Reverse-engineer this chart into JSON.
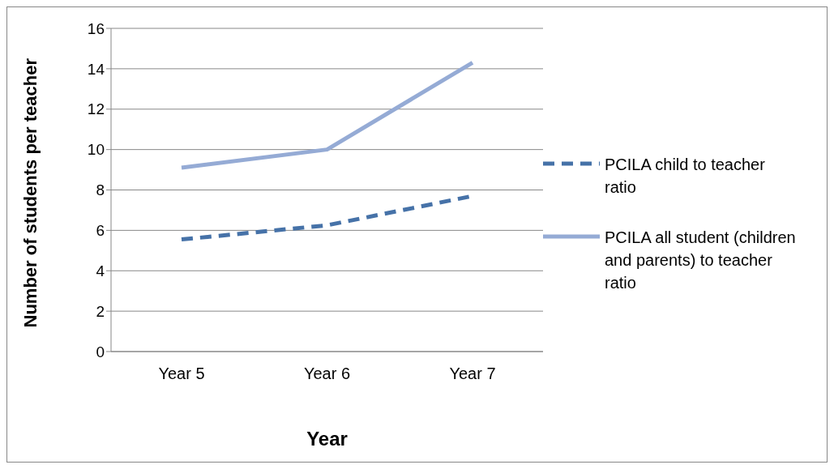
{
  "chart_data": {
    "type": "line",
    "xlabel": "Year",
    "ylabel": "Number of students per teacher",
    "categories": [
      "Year 5",
      "Year 6",
      "Year 7"
    ],
    "series": [
      {
        "name": "PCILA child to teacher ratio",
        "color": "#4672a8",
        "line_style": "dashed",
        "values": [
          5.55,
          6.25,
          7.7
        ]
      },
      {
        "name": "PCILA all student (children and parents) to teacher ratio",
        "color": "#95abd5",
        "line_style": "solid",
        "values": [
          9.1,
          10.0,
          14.3
        ]
      }
    ],
    "ylim": [
      0,
      16
    ],
    "yticks": [
      0,
      2,
      4,
      6,
      8,
      10,
      12,
      14,
      16
    ],
    "grid": "y",
    "legend": "right",
    "marker": "none"
  }
}
